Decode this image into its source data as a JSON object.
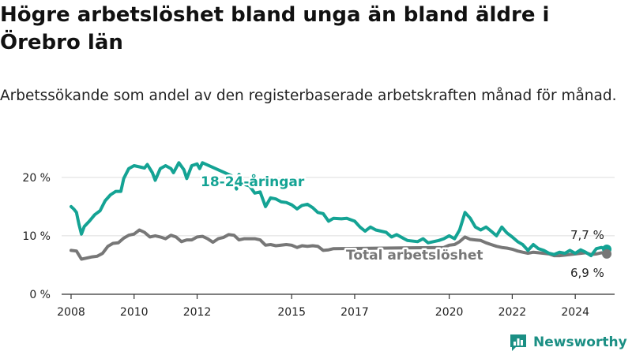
{
  "title": "Högre arbetslöshet bland unga än bland äldre i Örebro län",
  "subtitle": "Arbetssökande som andel av den registerbaserade arbetskraften månad för månad.",
  "brand": {
    "name": "Newsworthy",
    "icon": "bar-chart-logo-icon"
  },
  "colors": {
    "youth": "#14a394",
    "total": "#777777",
    "grid": "#dddddd",
    "axis": "#333333",
    "brand": "#1b8f84"
  },
  "chart_data": {
    "type": "line",
    "xlim": [
      2007.75,
      2025.55
    ],
    "ylim": [
      0,
      22
    ],
    "x_ticks": [
      {
        "value": 2008,
        "label": "2008"
      },
      {
        "value": 2010,
        "label": "2010"
      },
      {
        "value": 2012,
        "label": "2012"
      },
      {
        "value": 2015,
        "label": "2015"
      },
      {
        "value": 2017,
        "label": "2017"
      },
      {
        "value": 2020,
        "label": "2020"
      },
      {
        "value": 2022,
        "label": "2022"
      },
      {
        "value": 2024,
        "label": "2024"
      }
    ],
    "y_ticks": [
      {
        "value": 0,
        "label": "0 %"
      },
      {
        "value": 10,
        "label": "10 %"
      },
      {
        "value": 20,
        "label": "20 %"
      }
    ],
    "grid": true,
    "series": [
      {
        "name": "18-24-åringar",
        "end_label": "7,7 %",
        "points": [
          [
            2008.0,
            15.0
          ],
          [
            2008.08,
            14.6
          ],
          [
            2008.17,
            14.0
          ],
          [
            2008.25,
            12.0
          ],
          [
            2008.33,
            10.3
          ],
          [
            2008.42,
            11.6
          ],
          [
            2008.58,
            12.5
          ],
          [
            2008.75,
            13.6
          ],
          [
            2008.92,
            14.3
          ],
          [
            2009.08,
            16.0
          ],
          [
            2009.25,
            17.0
          ],
          [
            2009.42,
            17.6
          ],
          [
            2009.58,
            17.6
          ],
          [
            2009.67,
            19.8
          ],
          [
            2009.83,
            21.5
          ],
          [
            2010.0,
            22.0
          ],
          [
            2010.17,
            21.8
          ],
          [
            2010.33,
            21.6
          ],
          [
            2010.42,
            22.2
          ],
          [
            2010.58,
            20.8
          ],
          [
            2010.67,
            19.5
          ],
          [
            2010.83,
            21.5
          ],
          [
            2011.0,
            22.0
          ],
          [
            2011.17,
            21.5
          ],
          [
            2011.25,
            20.8
          ],
          [
            2011.42,
            22.5
          ],
          [
            2011.58,
            21.3
          ],
          [
            2011.67,
            19.8
          ],
          [
            2011.83,
            22.0
          ],
          [
            2012.0,
            22.3
          ],
          [
            2012.08,
            21.5
          ],
          [
            2012.17,
            22.5
          ],
          [
            2013.08,
            20.3
          ],
          [
            2013.25,
            18.0
          ],
          [
            2013.33,
            20.5
          ],
          [
            2013.5,
            18.8
          ],
          [
            2013.67,
            18.5
          ],
          [
            2013.83,
            17.3
          ],
          [
            2014.0,
            17.5
          ],
          [
            2014.17,
            15.0
          ],
          [
            2014.33,
            16.5
          ],
          [
            2014.5,
            16.3
          ],
          [
            2014.67,
            15.8
          ],
          [
            2014.83,
            15.7
          ],
          [
            2015.0,
            15.3
          ],
          [
            2015.17,
            14.6
          ],
          [
            2015.33,
            15.2
          ],
          [
            2015.5,
            15.4
          ],
          [
            2015.67,
            14.8
          ],
          [
            2015.83,
            14.0
          ],
          [
            2016.0,
            13.8
          ],
          [
            2016.17,
            12.5
          ],
          [
            2016.33,
            13.0
          ],
          [
            2016.58,
            12.9
          ],
          [
            2016.75,
            13.0
          ],
          [
            2017.0,
            12.5
          ],
          [
            2017.17,
            11.5
          ],
          [
            2017.33,
            10.8
          ],
          [
            2017.5,
            11.5
          ],
          [
            2017.67,
            11.0
          ],
          [
            2018.0,
            10.6
          ],
          [
            2018.17,
            9.8
          ],
          [
            2018.33,
            10.2
          ],
          [
            2018.67,
            9.2
          ],
          [
            2019.0,
            9.0
          ],
          [
            2019.17,
            9.5
          ],
          [
            2019.33,
            8.8
          ],
          [
            2019.67,
            9.2
          ],
          [
            2019.83,
            9.5
          ],
          [
            2020.0,
            10.0
          ],
          [
            2020.17,
            9.5
          ],
          [
            2020.33,
            11.0
          ],
          [
            2020.5,
            14.0
          ],
          [
            2020.67,
            13.0
          ],
          [
            2020.83,
            11.5
          ],
          [
            2021.0,
            11.0
          ],
          [
            2021.17,
            11.5
          ],
          [
            2021.33,
            10.8
          ],
          [
            2021.5,
            10.0
          ],
          [
            2021.67,
            11.5
          ],
          [
            2021.83,
            10.5
          ],
          [
            2022.0,
            9.8
          ],
          [
            2022.17,
            9.0
          ],
          [
            2022.33,
            8.5
          ],
          [
            2022.5,
            7.5
          ],
          [
            2022.67,
            8.5
          ],
          [
            2022.83,
            7.8
          ],
          [
            2023.0,
            7.5
          ],
          [
            2023.17,
            7.0
          ],
          [
            2023.33,
            6.8
          ],
          [
            2023.5,
            7.2
          ],
          [
            2023.67,
            7.0
          ],
          [
            2023.83,
            7.5
          ],
          [
            2024.0,
            7.0
          ],
          [
            2024.17,
            7.6
          ],
          [
            2024.33,
            7.2
          ],
          [
            2024.5,
            6.6
          ],
          [
            2024.67,
            7.8
          ],
          [
            2024.83,
            8.0
          ],
          [
            2025.0,
            7.7
          ]
        ]
      },
      {
        "name": "Total arbetslöshet",
        "end_label": "6,9 %",
        "points": [
          [
            2008.0,
            7.5
          ],
          [
            2008.17,
            7.4
          ],
          [
            2008.33,
            6.0
          ],
          [
            2008.5,
            6.2
          ],
          [
            2008.67,
            6.4
          ],
          [
            2008.83,
            6.5
          ],
          [
            2009.0,
            7.0
          ],
          [
            2009.17,
            8.2
          ],
          [
            2009.33,
            8.7
          ],
          [
            2009.5,
            8.8
          ],
          [
            2009.67,
            9.6
          ],
          [
            2009.83,
            10.1
          ],
          [
            2010.0,
            10.3
          ],
          [
            2010.17,
            11.0
          ],
          [
            2010.33,
            10.6
          ],
          [
            2010.5,
            9.8
          ],
          [
            2010.67,
            10.0
          ],
          [
            2010.83,
            9.8
          ],
          [
            2011.0,
            9.5
          ],
          [
            2011.17,
            10.1
          ],
          [
            2011.33,
            9.8
          ],
          [
            2011.5,
            9.0
          ],
          [
            2011.67,
            9.3
          ],
          [
            2011.83,
            9.3
          ],
          [
            2012.0,
            9.8
          ],
          [
            2012.17,
            9.9
          ],
          [
            2012.33,
            9.5
          ],
          [
            2012.5,
            8.9
          ],
          [
            2012.67,
            9.5
          ],
          [
            2012.83,
            9.7
          ],
          [
            2013.0,
            10.2
          ],
          [
            2013.17,
            10.1
          ],
          [
            2013.33,
            9.3
          ],
          [
            2013.5,
            9.5
          ],
          [
            2013.67,
            9.5
          ],
          [
            2013.83,
            9.5
          ],
          [
            2014.0,
            9.3
          ],
          [
            2014.17,
            8.4
          ],
          [
            2014.33,
            8.5
          ],
          [
            2014.5,
            8.3
          ],
          [
            2014.67,
            8.4
          ],
          [
            2014.83,
            8.5
          ],
          [
            2015.0,
            8.4
          ],
          [
            2015.17,
            8.0
          ],
          [
            2015.33,
            8.3
          ],
          [
            2015.5,
            8.2
          ],
          [
            2015.67,
            8.3
          ],
          [
            2015.83,
            8.2
          ],
          [
            2016.0,
            7.5
          ],
          [
            2016.17,
            7.6
          ],
          [
            2016.33,
            7.8
          ],
          [
            2019.83,
            8.0
          ],
          [
            2020.0,
            8.4
          ],
          [
            2020.17,
            8.5
          ],
          [
            2020.33,
            9.0
          ],
          [
            2020.5,
            9.8
          ],
          [
            2020.67,
            9.4
          ],
          [
            2020.83,
            9.3
          ],
          [
            2021.0,
            9.2
          ],
          [
            2021.17,
            8.8
          ],
          [
            2021.33,
            8.5
          ],
          [
            2021.5,
            8.2
          ],
          [
            2021.67,
            8.0
          ],
          [
            2021.83,
            7.9
          ],
          [
            2022.0,
            7.7
          ],
          [
            2022.17,
            7.4
          ],
          [
            2022.33,
            7.2
          ],
          [
            2022.5,
            7.0
          ],
          [
            2022.67,
            7.2
          ],
          [
            2022.83,
            7.1
          ],
          [
            2023.0,
            7.0
          ],
          [
            2023.17,
            6.9
          ],
          [
            2023.33,
            6.6
          ],
          [
            2023.5,
            6.6
          ],
          [
            2023.67,
            6.7
          ],
          [
            2023.83,
            6.8
          ],
          [
            2024.0,
            6.9
          ],
          [
            2024.17,
            7.0
          ],
          [
            2024.33,
            7.1
          ],
          [
            2024.5,
            6.8
          ],
          [
            2024.67,
            6.9
          ],
          [
            2024.83,
            7.1
          ],
          [
            2025.0,
            6.9
          ]
        ]
      }
    ]
  }
}
